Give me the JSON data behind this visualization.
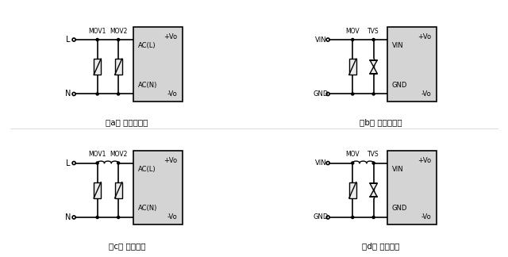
{
  "bg_color": "#ffffff",
  "box_color": "#d4d4d4",
  "line_color": "#000000",
  "text_color": "#000000",
  "fig_width": 6.4,
  "fig_height": 3.24,
  "captions": [
    "（a） 不恰当应用",
    "（b） 不恰当应用",
    "（c） 推荐应用",
    "（d） 推荐应用"
  ],
  "lw": 1.2,
  "dot_r": 0.01,
  "term_r": 0.013
}
